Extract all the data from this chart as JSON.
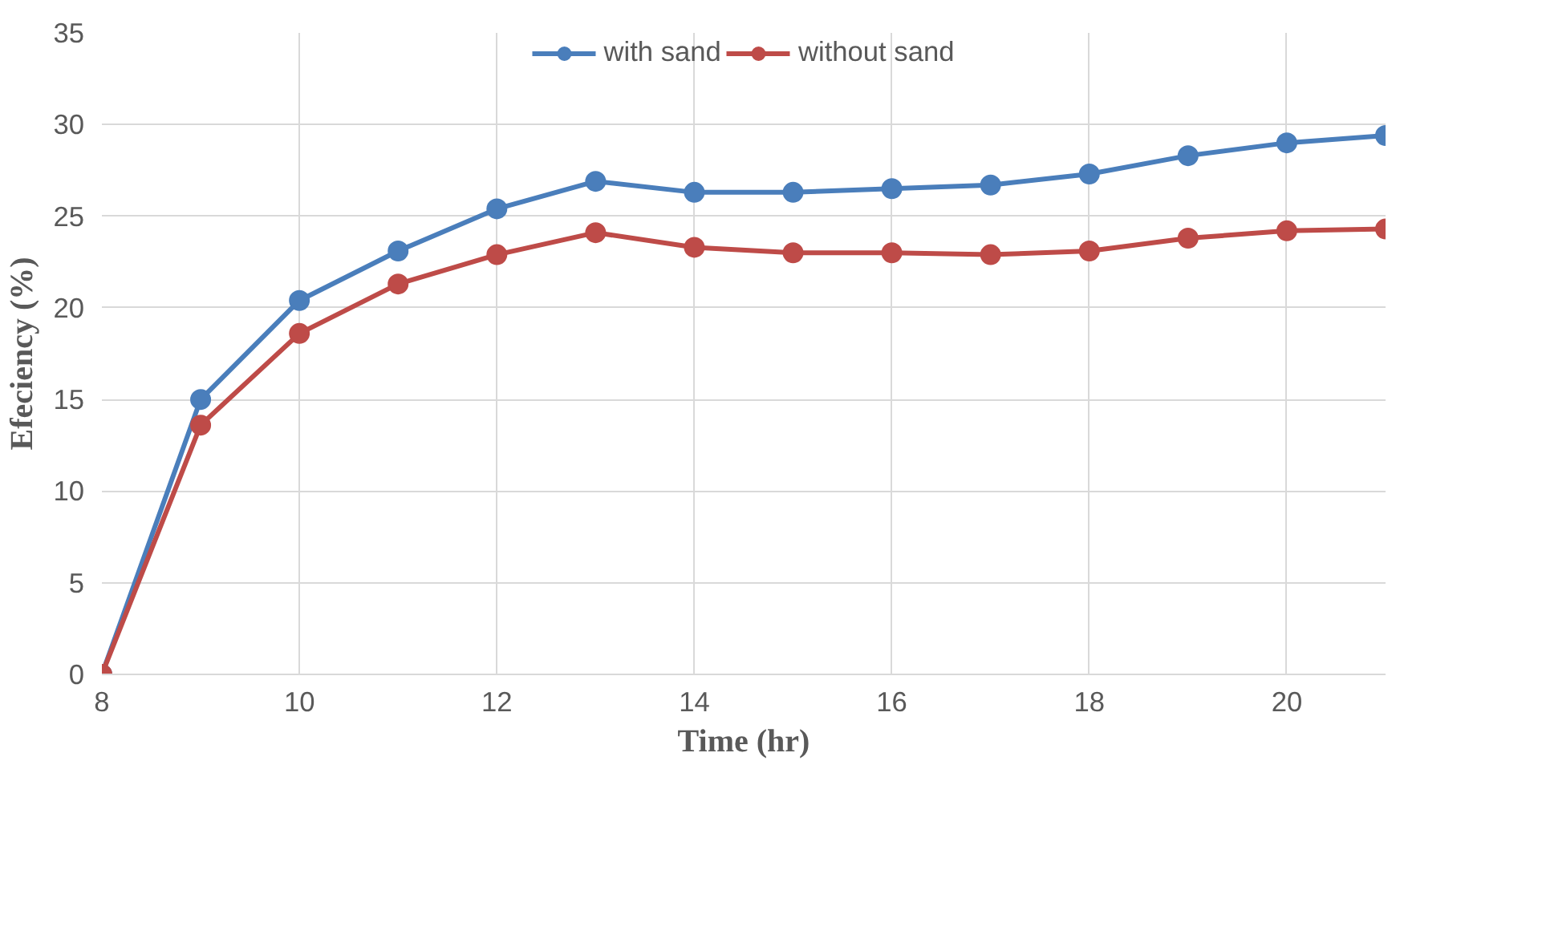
{
  "chart_data": {
    "type": "line",
    "xlabel": "Time (hr)",
    "ylabel": "Efeciency (%)",
    "x": [
      8,
      9,
      10,
      11,
      12,
      13,
      14,
      15,
      16,
      17,
      18,
      19,
      20,
      21
    ],
    "series": [
      {
        "name": "with sand",
        "color": "#4a7ebb",
        "values": [
          0,
          15.0,
          20.4,
          23.1,
          25.4,
          26.9,
          26.3,
          26.3,
          26.5,
          26.7,
          27.3,
          28.3,
          29.0,
          29.4
        ]
      },
      {
        "name": "without sand",
        "color": "#be4b48",
        "values": [
          0,
          13.6,
          18.6,
          21.3,
          22.9,
          24.1,
          23.3,
          23.0,
          23.0,
          22.9,
          23.1,
          23.8,
          24.2,
          24.3
        ]
      }
    ],
    "xlim": [
      8,
      21
    ],
    "ylim": [
      0,
      35
    ],
    "xticks": [
      8,
      10,
      12,
      14,
      16,
      18,
      20
    ],
    "yticks": [
      0,
      5,
      10,
      15,
      20,
      25,
      30,
      35
    ],
    "grid": true,
    "legend": "top",
    "marker": "circle",
    "line_style": "solid"
  }
}
